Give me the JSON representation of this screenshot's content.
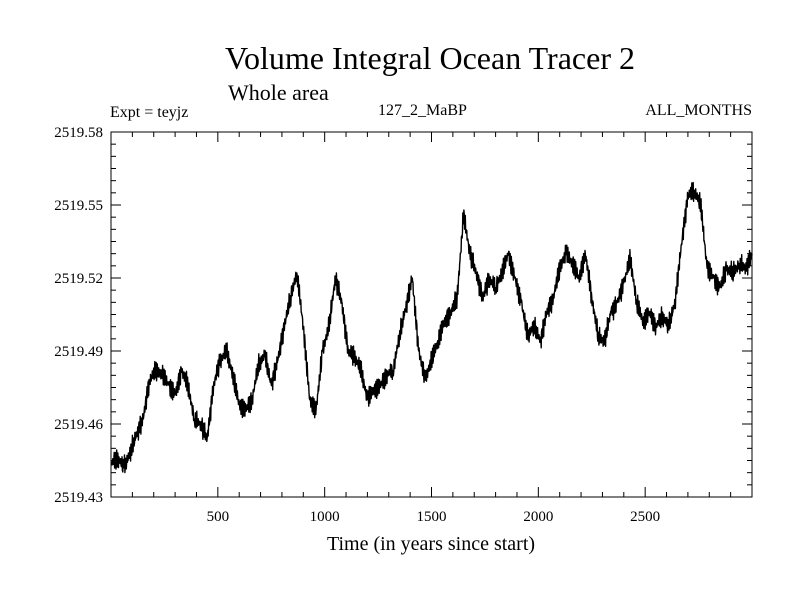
{
  "chart_data": {
    "type": "line",
    "title": "Volume Integral Ocean Tracer 2",
    "subtitle": "Whole area",
    "experiment": "Expt = teyjz",
    "period": "127_2_MaBP",
    "season": "ALL_MONTHS",
    "xlabel": "Time (in years since start)",
    "ylabel": "",
    "xlim": [
      0,
      3000
    ],
    "ylim": [
      2519.43,
      2519.58
    ],
    "xticks": [
      500,
      1000,
      1500,
      2000,
      2500
    ],
    "xtick_labels": [
      "500",
      "1000",
      "1500",
      "2000",
      "2500"
    ],
    "yticks": [
      2519.43,
      2519.46,
      2519.49,
      2519.52,
      2519.55,
      2519.58
    ],
    "ytick_labels": [
      "2519.43",
      "2519.46",
      "2519.49",
      "2519.52",
      "2519.55",
      "2519.58"
    ],
    "grid": false,
    "legend": "none",
    "series": [
      {
        "name": "Volume Integral Ocean Tracer 2",
        "x": [
          0,
          30,
          60,
          90,
          120,
          150,
          180,
          210,
          240,
          270,
          300,
          330,
          360,
          390,
          420,
          450,
          480,
          510,
          540,
          570,
          600,
          630,
          660,
          690,
          720,
          750,
          780,
          810,
          840,
          870,
          900,
          930,
          960,
          990,
          1020,
          1050,
          1080,
          1110,
          1140,
          1170,
          1200,
          1230,
          1260,
          1290,
          1320,
          1350,
          1380,
          1410,
          1440,
          1470,
          1500,
          1530,
          1560,
          1590,
          1620,
          1650,
          1680,
          1710,
          1740,
          1770,
          1800,
          1830,
          1860,
          1890,
          1920,
          1950,
          1980,
          2010,
          2040,
          2070,
          2100,
          2130,
          2160,
          2190,
          2220,
          2250,
          2280,
          2310,
          2340,
          2370,
          2400,
          2430,
          2460,
          2490,
          2520,
          2550,
          2580,
          2610,
          2640,
          2670,
          2700,
          2730,
          2760,
          2790,
          2820,
          2850,
          2880,
          2910,
          2940,
          2970,
          3000
        ],
        "values": [
          2519.444,
          2519.446,
          2519.442,
          2519.448,
          2519.456,
          2519.462,
          2519.478,
          2519.482,
          2519.48,
          2519.476,
          2519.472,
          2519.482,
          2519.476,
          2519.462,
          2519.46,
          2519.454,
          2519.476,
          2519.486,
          2519.49,
          2519.48,
          2519.468,
          2519.466,
          2519.47,
          2519.484,
          2519.488,
          2519.476,
          2519.486,
          2519.5,
          2519.512,
          2519.522,
          2519.5,
          2519.47,
          2519.466,
          2519.49,
          2519.5,
          2519.52,
          2519.51,
          2519.49,
          2519.488,
          2519.482,
          2519.47,
          2519.474,
          2519.476,
          2519.48,
          2519.482,
          2519.496,
          2519.508,
          2519.52,
          2519.49,
          2519.478,
          2519.486,
          2519.494,
          2519.502,
          2519.506,
          2519.512,
          2519.546,
          2519.53,
          2519.522,
          2519.512,
          2519.52,
          2519.516,
          2519.522,
          2519.53,
          2519.52,
          2519.51,
          2519.496,
          2519.5,
          2519.494,
          2519.506,
          2519.512,
          2519.524,
          2519.53,
          2519.526,
          2519.52,
          2519.53,
          2519.512,
          2519.496,
          2519.494,
          2519.506,
          2519.51,
          2519.518,
          2519.528,
          2519.51,
          2519.502,
          2519.506,
          2519.5,
          2519.504,
          2519.5,
          2519.51,
          2519.534,
          2519.554,
          2519.556,
          2519.55,
          2519.524,
          2519.52,
          2519.516,
          2519.524,
          2519.522,
          2519.526,
          2519.524,
          2519.53
        ]
      }
    ]
  }
}
